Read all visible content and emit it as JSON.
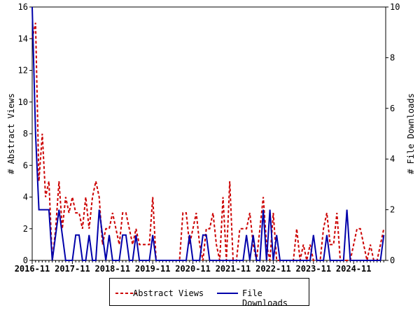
{
  "chart_data": {
    "type": "line",
    "title": "",
    "xlabel": "",
    "ylabel": "# Abstract Views",
    "y2label": "# File Downloads",
    "ylim": [
      0,
      16
    ],
    "y2lim": [
      0,
      10
    ],
    "yticks": [
      "0",
      "2",
      "4",
      "6",
      "8",
      "10",
      "12",
      "14",
      "16"
    ],
    "y2ticks": [
      "0",
      "2",
      "4",
      "6",
      "8",
      "10"
    ],
    "xticks": [
      "2016-11",
      "2017-11",
      "2018-11",
      "2019-11",
      "2020-11",
      "2021-11",
      "2022-11",
      "2023-11",
      "2024-11"
    ],
    "x_start": "2016-11",
    "colors": {
      "views": "#cc0000",
      "downloads": "#0000aa"
    },
    "series": [
      {
        "name": "Abstract Views",
        "axis": "left",
        "values": [
          14,
          15,
          5,
          8,
          4,
          5,
          0,
          2,
          5,
          2,
          4,
          3,
          4,
          3,
          3,
          2,
          4,
          2,
          4,
          5,
          4,
          1,
          2,
          2,
          3,
          2,
          1,
          3,
          3,
          2,
          1,
          2,
          1,
          1,
          1,
          1,
          4,
          0,
          0,
          0,
          0,
          0,
          0,
          0,
          0,
          3,
          3,
          1,
          2,
          3,
          1,
          0,
          2,
          2,
          3,
          1,
          0,
          4,
          0,
          5,
          0,
          0,
          2,
          2,
          2,
          3,
          1,
          0,
          2,
          4,
          1,
          0,
          3,
          0,
          0,
          0,
          0,
          0,
          0,
          2,
          0,
          1,
          0,
          1,
          0,
          0,
          0,
          2,
          3,
          1,
          1,
          3,
          0,
          0,
          0,
          0,
          1,
          2,
          2,
          1,
          0,
          1,
          0,
          0,
          1,
          2
        ]
      },
      {
        "name": "File Downloads",
        "axis": "right",
        "values": [
          10,
          5,
          2,
          2,
          2,
          2,
          0,
          1,
          2,
          1,
          0,
          0,
          0,
          1,
          1,
          0,
          0,
          1,
          0,
          0,
          2,
          1,
          0,
          1,
          0,
          0,
          0,
          1,
          1,
          0,
          0,
          1,
          0,
          0,
          0,
          0,
          1,
          0,
          0,
          0,
          0,
          0,
          0,
          0,
          0,
          0,
          0,
          1,
          0,
          0,
          0,
          1,
          1,
          0,
          0,
          0,
          0,
          0,
          0,
          0,
          0,
          0,
          0,
          0,
          1,
          0,
          1,
          0,
          0,
          2,
          0,
          2,
          0,
          1,
          0,
          0,
          0,
          0,
          0,
          0,
          0,
          0,
          0,
          0,
          1,
          0,
          0,
          0,
          1,
          0,
          0,
          0,
          0,
          0,
          2,
          0,
          0,
          0,
          0,
          0,
          0,
          0,
          0,
          0,
          0,
          1
        ]
      }
    ],
    "legend": "bottom"
  }
}
